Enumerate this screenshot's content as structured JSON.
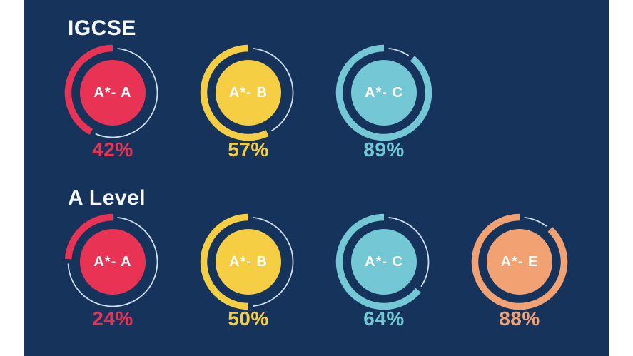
{
  "panel": {
    "background_color": "#15335B",
    "page_margin_color": "#FFFFFF"
  },
  "chart_data": {
    "type": "pie",
    "subtype": "donut-progress-grid",
    "description": "Exam results infographic: filled circles with progress arcs starting at 12 o'clock sweeping counterclockwise; remainder shown as thin pale track line",
    "percent_suffix": "%",
    "track_color": "#CFDFF2",
    "inner_text_color": "#FFFFFF",
    "arc_start": "top",
    "arc_direction": "counterclockwise",
    "legend_position": "none",
    "groups": [
      {
        "title": "IGCSE",
        "items": [
          {
            "label": "A*- A",
            "value": 42,
            "display": "42%",
            "color": "#E93355"
          },
          {
            "label": "A*- B",
            "value": 57,
            "display": "57%",
            "color": "#F6CE43"
          },
          {
            "label": "A*- C",
            "value": 89,
            "display": "89%",
            "color": "#74C8D6"
          }
        ]
      },
      {
        "title": "A Level",
        "items": [
          {
            "label": "A*- A",
            "value": 24,
            "display": "24%",
            "color": "#E93355"
          },
          {
            "label": "A*- B",
            "value": 50,
            "display": "50%",
            "color": "#F6CE43"
          },
          {
            "label": "A*- C",
            "value": 64,
            "display": "64%",
            "color": "#74C8D6"
          },
          {
            "label": "A*- E",
            "value": 88,
            "display": "88%",
            "color": "#F2A173"
          }
        ]
      }
    ]
  }
}
